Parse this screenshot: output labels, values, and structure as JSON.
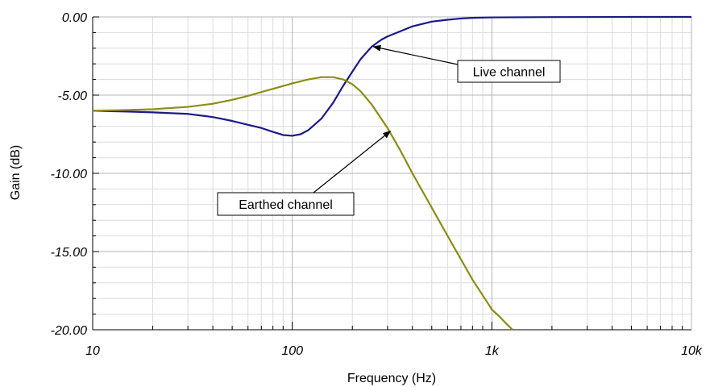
{
  "chart_data": {
    "type": "line",
    "title": "",
    "xlabel": "Frequency (Hz)",
    "ylabel": "Gain (dB)",
    "xscale": "log",
    "xlim": [
      10,
      10000
    ],
    "ylim": [
      -20,
      0
    ],
    "x_ticks": [
      {
        "value": 10,
        "label": "10"
      },
      {
        "value": 100,
        "label": "100"
      },
      {
        "value": 1000,
        "label": "1k"
      },
      {
        "value": 10000,
        "label": "10k"
      }
    ],
    "y_ticks": [
      {
        "value": 0,
        "label": "0.00"
      },
      {
        "value": -5,
        "label": "-5.00"
      },
      {
        "value": -10,
        "label": "-10.00"
      },
      {
        "value": -15,
        "label": "-15.00"
      },
      {
        "value": -20,
        "label": "-20.00"
      }
    ],
    "grid": true,
    "colors": {
      "live": "#1a1a8c",
      "earthed": "#8c8c14",
      "grid_major": "#b4b4b4",
      "grid_minor": "#dcdcdc"
    },
    "series": [
      {
        "key": "live",
        "x": [
          10,
          15,
          20,
          30,
          40,
          50,
          60,
          70,
          80,
          90,
          100,
          110,
          120,
          140,
          160,
          180,
          200,
          220,
          250,
          280,
          300,
          350,
          400,
          500,
          600,
          700,
          800,
          1000,
          2000,
          5000,
          10000
        ],
        "y": [
          -6.0,
          -6.05,
          -6.1,
          -6.2,
          -6.4,
          -6.65,
          -6.9,
          -7.1,
          -7.35,
          -7.55,
          -7.6,
          -7.5,
          -7.25,
          -6.5,
          -5.5,
          -4.4,
          -3.5,
          -2.7,
          -1.9,
          -1.45,
          -1.25,
          -0.9,
          -0.6,
          -0.3,
          -0.18,
          -0.1,
          -0.06,
          -0.03,
          -0.01,
          0.0,
          0.0
        ]
      },
      {
        "key": "earthed",
        "x": [
          10,
          15,
          20,
          30,
          40,
          50,
          60,
          70,
          80,
          100,
          120,
          140,
          160,
          180,
          200,
          220,
          250,
          300,
          350,
          400,
          500,
          600,
          700,
          800,
          900,
          1000,
          1100,
          1200,
          1270
        ],
        "y": [
          -6.0,
          -5.95,
          -5.9,
          -5.75,
          -5.55,
          -5.3,
          -5.05,
          -4.8,
          -4.6,
          -4.25,
          -4.0,
          -3.85,
          -3.85,
          -4.0,
          -4.3,
          -4.75,
          -5.6,
          -7.1,
          -8.6,
          -10.0,
          -12.2,
          -14.0,
          -15.5,
          -16.8,
          -17.8,
          -18.7,
          -19.2,
          -19.7,
          -20.0
        ]
      }
    ],
    "annotations": [
      {
        "key": "live",
        "text": "Live channel",
        "target": [
          255,
          -1.9
        ]
      },
      {
        "key": "earthed",
        "text": "Earthed channel",
        "target": [
          310,
          -7.3
        ]
      }
    ]
  }
}
